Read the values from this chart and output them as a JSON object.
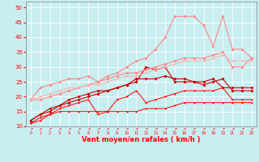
{
  "xlabel": "Vent moyen/en rafales ( km/h )",
  "x": [
    0,
    1,
    2,
    3,
    4,
    5,
    6,
    7,
    8,
    9,
    10,
    11,
    12,
    13,
    14,
    15,
    16,
    17,
    18,
    19,
    20,
    21,
    22,
    23
  ],
  "lines": [
    {
      "color": "#ff0000",
      "marker": "o",
      "markersize": 1.5,
      "linewidth": 0.7,
      "data": [
        11,
        12,
        14,
        15,
        15,
        15,
        15,
        15,
        15,
        15,
        15,
        15,
        16,
        16,
        16,
        17,
        18,
        18,
        18,
        18,
        18,
        18,
        18,
        18
      ]
    },
    {
      "color": "#ff0000",
      "marker": "o",
      "markersize": 1.5,
      "linewidth": 0.7,
      "data": [
        11,
        13,
        14,
        16,
        17,
        18,
        19,
        14,
        15,
        19,
        20,
        22,
        18,
        19,
        20,
        21,
        22,
        22,
        22,
        22,
        23,
        19,
        19,
        19
      ]
    },
    {
      "color": "#cc0000",
      "marker": "D",
      "markersize": 2.0,
      "linewidth": 0.8,
      "data": [
        12,
        14,
        15,
        17,
        18,
        19,
        20,
        21,
        22,
        23,
        24,
        25,
        30,
        29,
        30,
        25,
        25,
        25,
        25,
        26,
        23,
        23,
        23,
        23
      ]
    },
    {
      "color": "#cc0000",
      "marker": "D",
      "markersize": 2.0,
      "linewidth": 0.8,
      "data": [
        12,
        14,
        16,
        17,
        19,
        20,
        21,
        22,
        22,
        23,
        24,
        26,
        26,
        26,
        27,
        26,
        26,
        25,
        24,
        25,
        26,
        22,
        22,
        22
      ]
    },
    {
      "color": "#ff8888",
      "marker": "D",
      "markersize": 2.0,
      "linewidth": 0.8,
      "data": [
        19,
        23,
        24,
        25,
        26,
        26,
        27,
        25,
        27,
        28,
        30,
        32,
        33,
        36,
        40,
        47,
        47,
        47,
        44,
        37,
        47,
        36,
        36,
        33
      ]
    },
    {
      "color": "#ff8888",
      "marker": "D",
      "markersize": 2.0,
      "linewidth": 0.8,
      "data": [
        19,
        19,
        20,
        21,
        22,
        23,
        24,
        25,
        26,
        27,
        28,
        28,
        29,
        30,
        31,
        32,
        33,
        33,
        33,
        34,
        35,
        30,
        30,
        33
      ]
    },
    {
      "color": "#ffb0b0",
      "marker": "D",
      "markersize": 1.5,
      "linewidth": 0.7,
      "data": [
        19,
        20,
        21,
        22,
        23,
        23,
        24,
        24,
        25,
        26,
        27,
        27,
        28,
        29,
        30,
        31,
        32,
        32,
        32,
        33,
        34,
        32,
        32,
        32
      ]
    }
  ],
  "ylim": [
    10,
    52
  ],
  "yticks": [
    10,
    15,
    20,
    25,
    30,
    35,
    40,
    45,
    50
  ],
  "xlim": [
    -0.5,
    23.5
  ],
  "xticks": [
    0,
    1,
    2,
    3,
    4,
    5,
    6,
    7,
    8,
    9,
    10,
    11,
    12,
    13,
    14,
    15,
    16,
    17,
    18,
    19,
    20,
    21,
    22,
    23
  ],
  "bg_color": "#c8eef0",
  "grid_color": "#ffffff",
  "axis_color": "#ff0000",
  "label_color": "#ff0000",
  "tick_color": "#ff0000"
}
